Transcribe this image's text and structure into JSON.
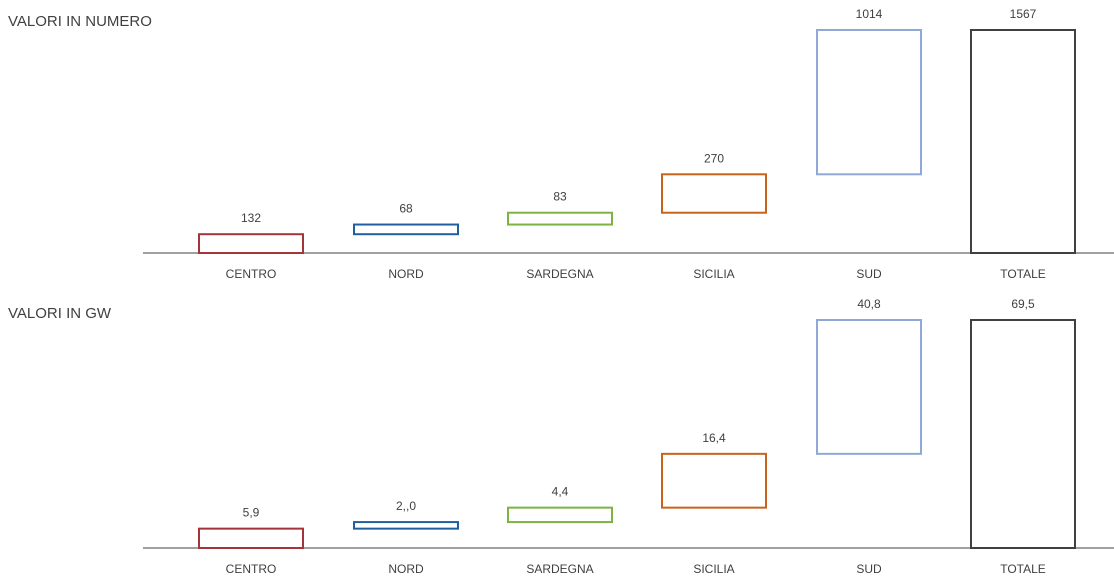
{
  "chart_data": {
    "type": "bar",
    "subtype": "waterfall",
    "categories": [
      "CENTRO",
      "NORD",
      "SARDEGNA",
      "SICILIA",
      "SUD",
      "TOTALE"
    ],
    "colors": [
      "#a4343a",
      "#1f5fa0",
      "#7cb342",
      "#c8631c",
      "#8ea9d6",
      "#404040"
    ],
    "grid": false,
    "legend": "none",
    "panels": [
      {
        "title": "VALORI IN NUMERO",
        "values": [
          132,
          68,
          83,
          270,
          1014,
          1567
        ],
        "value_labels": [
          "132",
          "68",
          "83",
          "270",
          "1014",
          "1567"
        ],
        "ylim": [
          0,
          1567
        ]
      },
      {
        "title": "VALORI IN GW",
        "values": [
          5.9,
          2.0,
          4.4,
          16.4,
          40.8,
          69.5
        ],
        "value_labels": [
          "5,9",
          "2,,0",
          "4,4",
          "16,4",
          "40,8",
          "69,5"
        ],
        "ylim": [
          0,
          69.5
        ]
      }
    ]
  }
}
